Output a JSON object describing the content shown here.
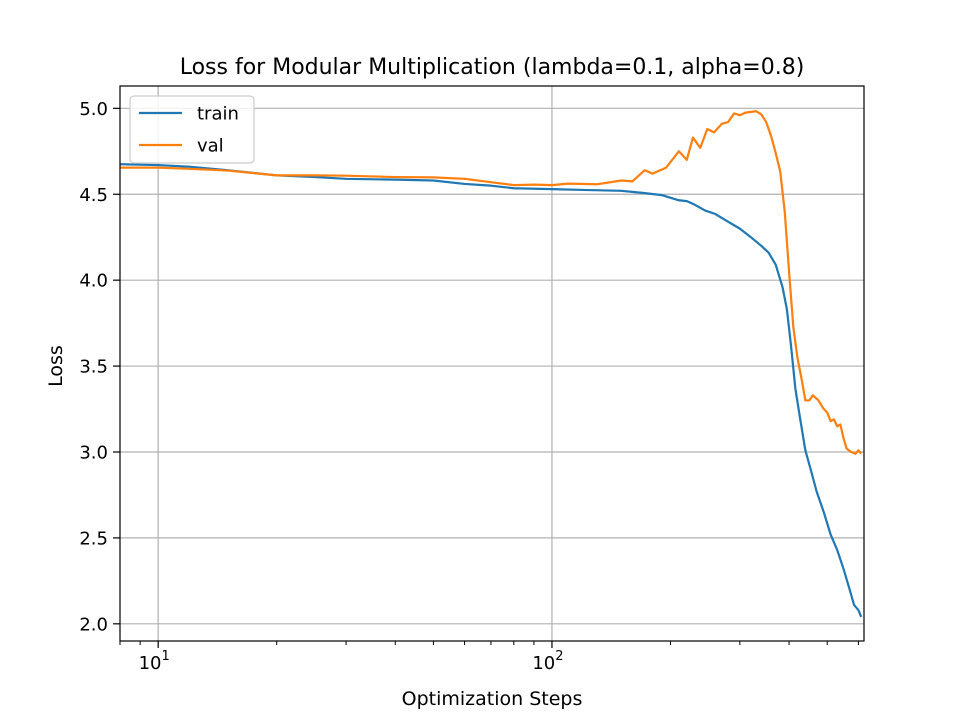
{
  "chart_data": {
    "type": "line",
    "title": "Loss for Modular Multiplication (lambda=0.1, alpha=0.8)",
    "xlabel": "Optimization Steps",
    "ylabel": "Loss",
    "xscale": "log",
    "xlim": [
      8,
      620
    ],
    "ylim": [
      1.9,
      5.13
    ],
    "grid": true,
    "legend_loc": "upper-left",
    "x_ticks": [
      {
        "value": 10,
        "base": "10",
        "exp": "1"
      },
      {
        "value": 100,
        "base": "10",
        "exp": "2"
      }
    ],
    "y_ticks": [
      {
        "value": 2.0,
        "label": "2.0"
      },
      {
        "value": 2.5,
        "label": "2.5"
      },
      {
        "value": 3.0,
        "label": "3.0"
      },
      {
        "value": 3.5,
        "label": "3.5"
      },
      {
        "value": 4.0,
        "label": "4.0"
      },
      {
        "value": 4.5,
        "label": "4.5"
      },
      {
        "value": 5.0,
        "label": "5.0"
      }
    ],
    "series": [
      {
        "name": "train",
        "color": "#1f77b4",
        "points": [
          [
            8,
            4.675
          ],
          [
            10,
            4.67
          ],
          [
            12,
            4.66
          ],
          [
            15,
            4.64
          ],
          [
            20,
            4.61
          ],
          [
            25,
            4.6
          ],
          [
            30,
            4.59
          ],
          [
            40,
            4.585
          ],
          [
            50,
            4.58
          ],
          [
            60,
            4.56
          ],
          [
            70,
            4.55
          ],
          [
            80,
            4.535
          ],
          [
            100,
            4.53
          ],
          [
            120,
            4.525
          ],
          [
            150,
            4.52
          ],
          [
            170,
            4.508
          ],
          [
            190,
            4.495
          ],
          [
            210,
            4.465
          ],
          [
            220,
            4.46
          ],
          [
            230,
            4.44
          ],
          [
            245,
            4.405
          ],
          [
            260,
            4.385
          ],
          [
            280,
            4.34
          ],
          [
            300,
            4.3
          ],
          [
            320,
            4.25
          ],
          [
            340,
            4.2
          ],
          [
            355,
            4.16
          ],
          [
            370,
            4.09
          ],
          [
            385,
            3.96
          ],
          [
            395,
            3.83
          ],
          [
            405,
            3.61
          ],
          [
            415,
            3.37
          ],
          [
            425,
            3.22
          ],
          [
            440,
            3.01
          ],
          [
            455,
            2.89
          ],
          [
            470,
            2.77
          ],
          [
            490,
            2.65
          ],
          [
            510,
            2.52
          ],
          [
            530,
            2.43
          ],
          [
            550,
            2.32
          ],
          [
            570,
            2.2
          ],
          [
            585,
            2.11
          ],
          [
            600,
            2.08
          ],
          [
            610,
            2.04
          ]
        ]
      },
      {
        "name": "val",
        "color": "#ff7f0e",
        "points": [
          [
            8,
            4.655
          ],
          [
            10,
            4.655
          ],
          [
            12,
            4.648
          ],
          [
            15,
            4.638
          ],
          [
            20,
            4.61
          ],
          [
            25,
            4.61
          ],
          [
            30,
            4.608
          ],
          [
            40,
            4.6
          ],
          [
            50,
            4.598
          ],
          [
            60,
            4.59
          ],
          [
            70,
            4.57
          ],
          [
            80,
            4.553
          ],
          [
            90,
            4.556
          ],
          [
            100,
            4.553
          ],
          [
            110,
            4.562
          ],
          [
            130,
            4.558
          ],
          [
            150,
            4.58
          ],
          [
            160,
            4.575
          ],
          [
            172,
            4.64
          ],
          [
            180,
            4.62
          ],
          [
            195,
            4.655
          ],
          [
            210,
            4.75
          ],
          [
            220,
            4.7
          ],
          [
            228,
            4.83
          ],
          [
            238,
            4.77
          ],
          [
            248,
            4.88
          ],
          [
            258,
            4.86
          ],
          [
            270,
            4.91
          ],
          [
            280,
            4.92
          ],
          [
            290,
            4.97
          ],
          [
            300,
            4.96
          ],
          [
            310,
            4.975
          ],
          [
            330,
            4.983
          ],
          [
            340,
            4.965
          ],
          [
            350,
            4.92
          ],
          [
            360,
            4.84
          ],
          [
            370,
            4.74
          ],
          [
            380,
            4.63
          ],
          [
            390,
            4.4
          ],
          [
            400,
            4.05
          ],
          [
            410,
            3.73
          ],
          [
            420,
            3.55
          ],
          [
            430,
            3.43
          ],
          [
            440,
            3.3
          ],
          [
            450,
            3.3
          ],
          [
            460,
            3.33
          ],
          [
            475,
            3.3
          ],
          [
            490,
            3.25
          ],
          [
            500,
            3.23
          ],
          [
            510,
            3.18
          ],
          [
            520,
            3.19
          ],
          [
            530,
            3.15
          ],
          [
            540,
            3.16
          ],
          [
            550,
            3.08
          ],
          [
            560,
            3.02
          ],
          [
            575,
            3.0
          ],
          [
            590,
            2.99
          ],
          [
            600,
            3.01
          ],
          [
            610,
            2.99
          ]
        ]
      }
    ]
  }
}
